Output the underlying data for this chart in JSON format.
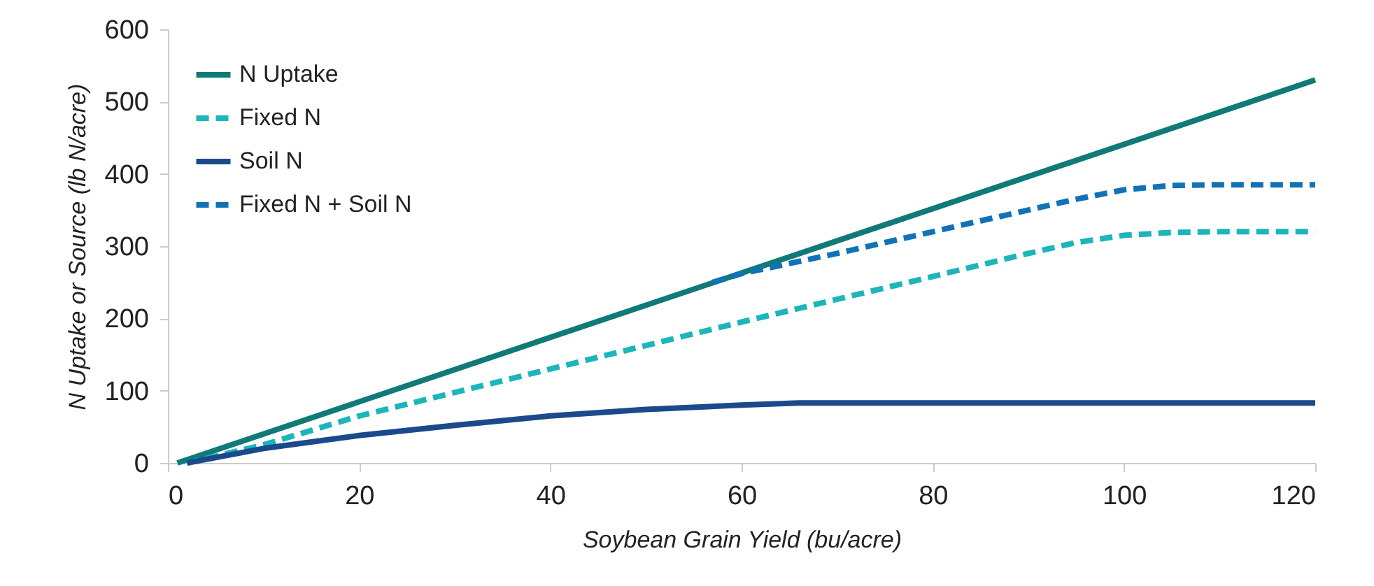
{
  "chart_data": {
    "type": "line",
    "xlabel": "Soybean Grain Yield (bu/acre)",
    "ylabel": "N  Uptake or Source (lb N/acre)",
    "xlim": [
      0,
      120
    ],
    "ylim": [
      0,
      600
    ],
    "xticks": [
      0,
      20,
      40,
      60,
      80,
      100,
      120
    ],
    "yticks": [
      0,
      100,
      200,
      300,
      400,
      500,
      600
    ],
    "grid": false,
    "legend": "top left",
    "marker": "none",
    "series": [
      {
        "name": "N Uptake",
        "color": "#0f7a78",
        "line_style": "solid",
        "x": [
          1,
          120
        ],
        "values": [
          0,
          530
        ]
      },
      {
        "name": "Fixed N",
        "color": "#1cb5ba",
        "line_style": "dashed",
        "x": [
          2,
          10,
          20,
          40,
          60,
          80,
          90,
          95,
          100,
          105,
          110,
          120
        ],
        "values": [
          0,
          25,
          65,
          130,
          195,
          258,
          290,
          305,
          315,
          319,
          320,
          320
        ]
      },
      {
        "name": "Soil N",
        "color": "#1b4a8c",
        "line_style": "solid",
        "x": [
          2,
          10,
          20,
          30,
          40,
          50,
          60,
          66,
          80,
          120
        ],
        "values": [
          0,
          20,
          38,
          52,
          65,
          74,
          80,
          83,
          83,
          83
        ]
      },
      {
        "name": "Fixed N + Soil N",
        "color": "#1172b6",
        "line_style": "dashed",
        "x": [
          57,
          60,
          70,
          80,
          90,
          95,
          100,
          105,
          110,
          120
        ],
        "values": [
          250,
          262,
          290,
          320,
          350,
          365,
          378,
          384,
          385,
          385
        ]
      }
    ]
  }
}
